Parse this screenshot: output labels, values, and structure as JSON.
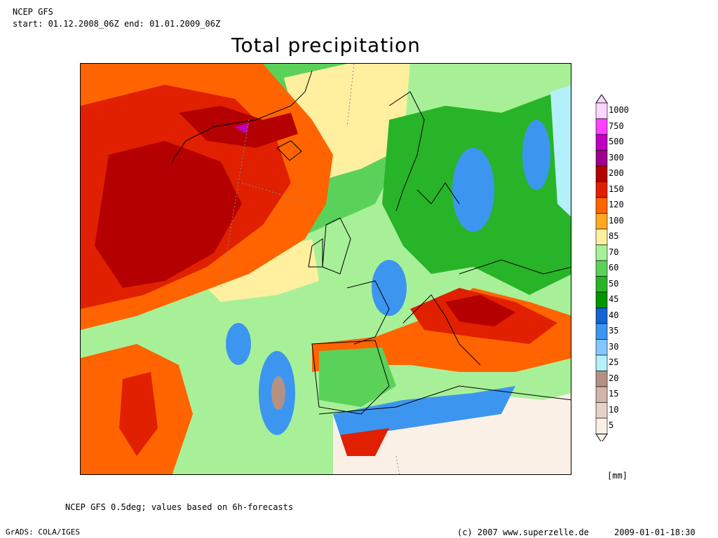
{
  "header": {
    "model": "NCEP GFS",
    "period": "start: 01.12.2008_06Z end: 01.01.2009_06Z"
  },
  "title": "Total precipitation",
  "footer": {
    "note": "NCEP GFS 0.5deg; values based on 6h-forecasts",
    "grads": "GrADS: COLA/IGES",
    "copyright": "(c) 2007 www.superzelle.de",
    "timestamp": "2009-01-01-18:30"
  },
  "legend": {
    "unit": "[mm]",
    "levels": [
      {
        "label": "1000",
        "color": "#ffd6ff"
      },
      {
        "label": "750",
        "color": "#ff40ff"
      },
      {
        "label": "500",
        "color": "#c000c0"
      },
      {
        "label": "300",
        "color": "#a00090"
      },
      {
        "label": "200",
        "color": "#b40000"
      },
      {
        "label": "150",
        "color": "#e02000"
      },
      {
        "label": "120",
        "color": "#ff6400"
      },
      {
        "label": "100",
        "color": "#ffaa22"
      },
      {
        "label": "85",
        "color": "#fff0a0"
      },
      {
        "label": "70",
        "color": "#a8f098"
      },
      {
        "label": "60",
        "color": "#5ad25a"
      },
      {
        "label": "50",
        "color": "#28b428"
      },
      {
        "label": "45",
        "color": "#009600"
      },
      {
        "label": "40",
        "color": "#1464d2"
      },
      {
        "label": "35",
        "color": "#3c96f0"
      },
      {
        "label": "30",
        "color": "#82c8ff"
      },
      {
        "label": "25",
        "color": "#b4f0fa"
      },
      {
        "label": "20",
        "color": "#b49182"
      },
      {
        "label": "15",
        "color": "#d2b4aa"
      },
      {
        "label": "10",
        "color": "#e6d2c8"
      },
      {
        "label": "5",
        "color": "#faf0e6"
      }
    ]
  }
}
